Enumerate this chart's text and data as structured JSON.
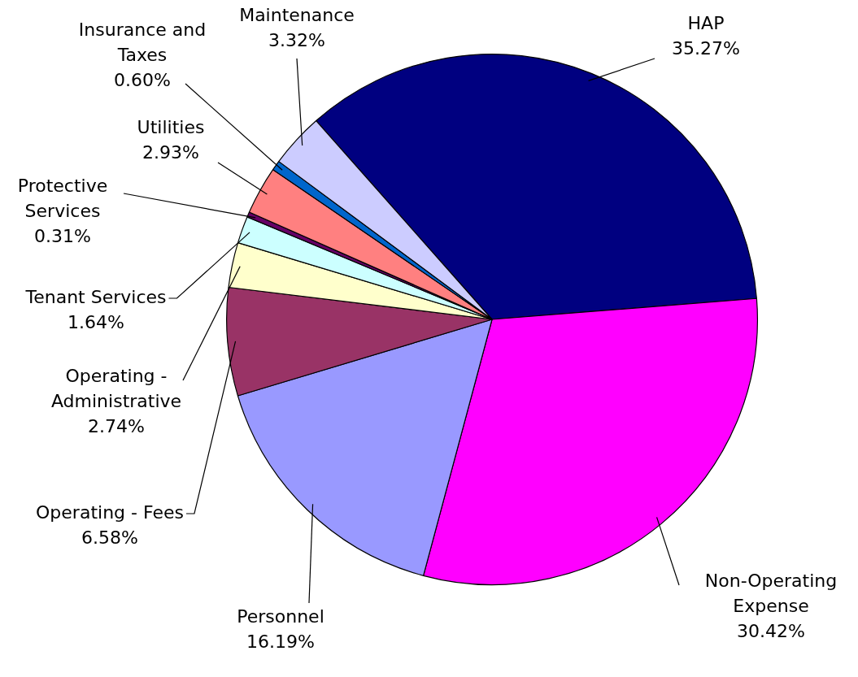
{
  "chart_data": {
    "type": "pie",
    "categories": [
      "HAP",
      "Non-Operating Expense",
      "Personnel",
      "Operating - Fees",
      "Operating - Administrative",
      "Tenant Services",
      "Protective Services",
      "Utilities",
      "Insurance and Taxes",
      "Maintenance"
    ],
    "values": [
      35.27,
      30.42,
      16.19,
      6.58,
      2.74,
      1.64,
      0.31,
      2.93,
      0.6,
      3.32
    ],
    "colors": [
      "#000080",
      "#ff00ff",
      "#9999ff",
      "#993366",
      "#ffffcc",
      "#ccffff",
      "#660066",
      "#ff8080",
      "#0066cc",
      "#ccccff"
    ],
    "value_labels": [
      "35.27%",
      "30.42%",
      "16.19%",
      "6.58%",
      "2.74%",
      "1.64%",
      "0.31%",
      "2.93%",
      "0.60%",
      "3.32%"
    ]
  }
}
